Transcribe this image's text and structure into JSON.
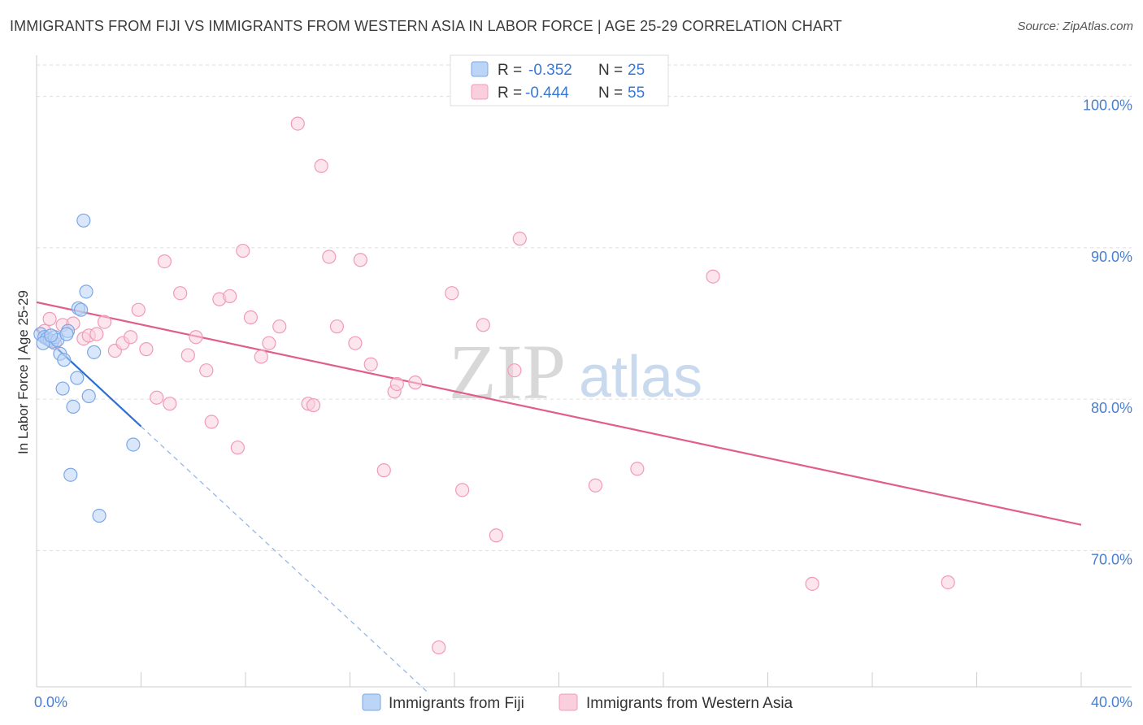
{
  "title": "IMMIGRANTS FROM FIJI VS IMMIGRANTS FROM WESTERN ASIA IN LABOR FORCE | AGE 25-29 CORRELATION CHART",
  "source": "Source: ZipAtlas.com",
  "watermark": {
    "zip": "ZIP",
    "atlas": "atlas"
  },
  "chart_data": {
    "type": "scatter",
    "xlabel": "",
    "ylabel": "In Labor Force | Age 25-29",
    "xlim": [
      0,
      40
    ],
    "ylim": [
      61,
      102.5
    ],
    "x_tick_labels": {
      "min": "0.0%",
      "max": "40.0%"
    },
    "y_ticks": [
      {
        "value": 70,
        "label": "70.0%"
      },
      {
        "value": 80,
        "label": "80.0%"
      },
      {
        "value": 90,
        "label": "90.0%"
      },
      {
        "value": 100,
        "label": "100.0%"
      }
    ],
    "grid": true,
    "legend_position": "top-center",
    "series": [
      {
        "name": "Immigrants from Fiji",
        "color": "#7aa8e6",
        "fill": "#bcd4f5",
        "line_color": "#2a6fd1",
        "R": "-0.352",
        "N": "25",
        "trend": {
          "x0": 0,
          "y0": 84.6,
          "x1": 4.0,
          "y1": 78.2,
          "dash_x1": 15.0,
          "dash_y1": 60.6
        },
        "points": [
          [
            0.15,
            84.3
          ],
          [
            0.3,
            84.1
          ],
          [
            0.4,
            84.0
          ],
          [
            0.5,
            83.9
          ],
          [
            0.6,
            83.8
          ],
          [
            0.7,
            84.1
          ],
          [
            0.8,
            83.9
          ],
          [
            0.9,
            83.0
          ],
          [
            1.0,
            80.7
          ],
          [
            1.05,
            82.6
          ],
          [
            1.2,
            84.5
          ],
          [
            1.3,
            75.0
          ],
          [
            1.4,
            79.5
          ],
          [
            1.55,
            81.4
          ],
          [
            1.6,
            86.0
          ],
          [
            1.7,
            85.9
          ],
          [
            1.8,
            91.8
          ],
          [
            1.9,
            87.1
          ],
          [
            2.0,
            80.2
          ],
          [
            2.2,
            83.1
          ],
          [
            2.4,
            72.3
          ],
          [
            3.7,
            77.0
          ],
          [
            0.25,
            83.7
          ],
          [
            0.55,
            84.2
          ],
          [
            1.15,
            84.3
          ]
        ]
      },
      {
        "name": "Immigrants from Western Asia",
        "color": "#f19ab8",
        "fill": "#f9cfdd",
        "line_color": "#e05d8c",
        "R": "-0.444",
        "N": "55",
        "trend": {
          "x0": 0,
          "y0": 86.4,
          "x1": 40,
          "y1": 71.7
        },
        "points": [
          [
            0.3,
            84.5
          ],
          [
            0.5,
            85.3
          ],
          [
            0.7,
            83.7
          ],
          [
            1.0,
            84.9
          ],
          [
            1.4,
            85.0
          ],
          [
            1.8,
            84.0
          ],
          [
            2.0,
            84.2
          ],
          [
            2.3,
            84.3
          ],
          [
            2.6,
            85.1
          ],
          [
            3.0,
            83.2
          ],
          [
            3.3,
            83.7
          ],
          [
            3.6,
            84.1
          ],
          [
            3.9,
            85.9
          ],
          [
            4.2,
            83.3
          ],
          [
            4.6,
            80.1
          ],
          [
            4.9,
            89.1
          ],
          [
            5.1,
            79.7
          ],
          [
            5.5,
            87.0
          ],
          [
            5.8,
            82.9
          ],
          [
            6.1,
            84.1
          ],
          [
            6.5,
            81.9
          ],
          [
            6.7,
            78.5
          ],
          [
            7.0,
            86.6
          ],
          [
            7.4,
            86.8
          ],
          [
            7.7,
            76.8
          ],
          [
            7.9,
            89.8
          ],
          [
            8.2,
            85.4
          ],
          [
            8.6,
            82.8
          ],
          [
            8.9,
            83.7
          ],
          [
            9.3,
            84.8
          ],
          [
            10.0,
            98.2
          ],
          [
            10.4,
            79.7
          ],
          [
            10.6,
            79.6
          ],
          [
            10.9,
            95.4
          ],
          [
            11.2,
            89.4
          ],
          [
            11.5,
            84.8
          ],
          [
            12.2,
            83.7
          ],
          [
            12.4,
            89.2
          ],
          [
            12.8,
            82.3
          ],
          [
            13.3,
            75.3
          ],
          [
            13.7,
            80.5
          ],
          [
            13.8,
            81.0
          ],
          [
            14.5,
            81.1
          ],
          [
            15.4,
            63.6
          ],
          [
            15.9,
            87.0
          ],
          [
            16.3,
            74.0
          ],
          [
            17.1,
            84.9
          ],
          [
            17.6,
            71.0
          ],
          [
            18.3,
            81.9
          ],
          [
            18.5,
            90.6
          ],
          [
            21.4,
            74.3
          ],
          [
            23.0,
            75.4
          ],
          [
            25.9,
            88.1
          ],
          [
            29.7,
            67.8
          ],
          [
            34.9,
            67.9
          ]
        ]
      }
    ]
  }
}
